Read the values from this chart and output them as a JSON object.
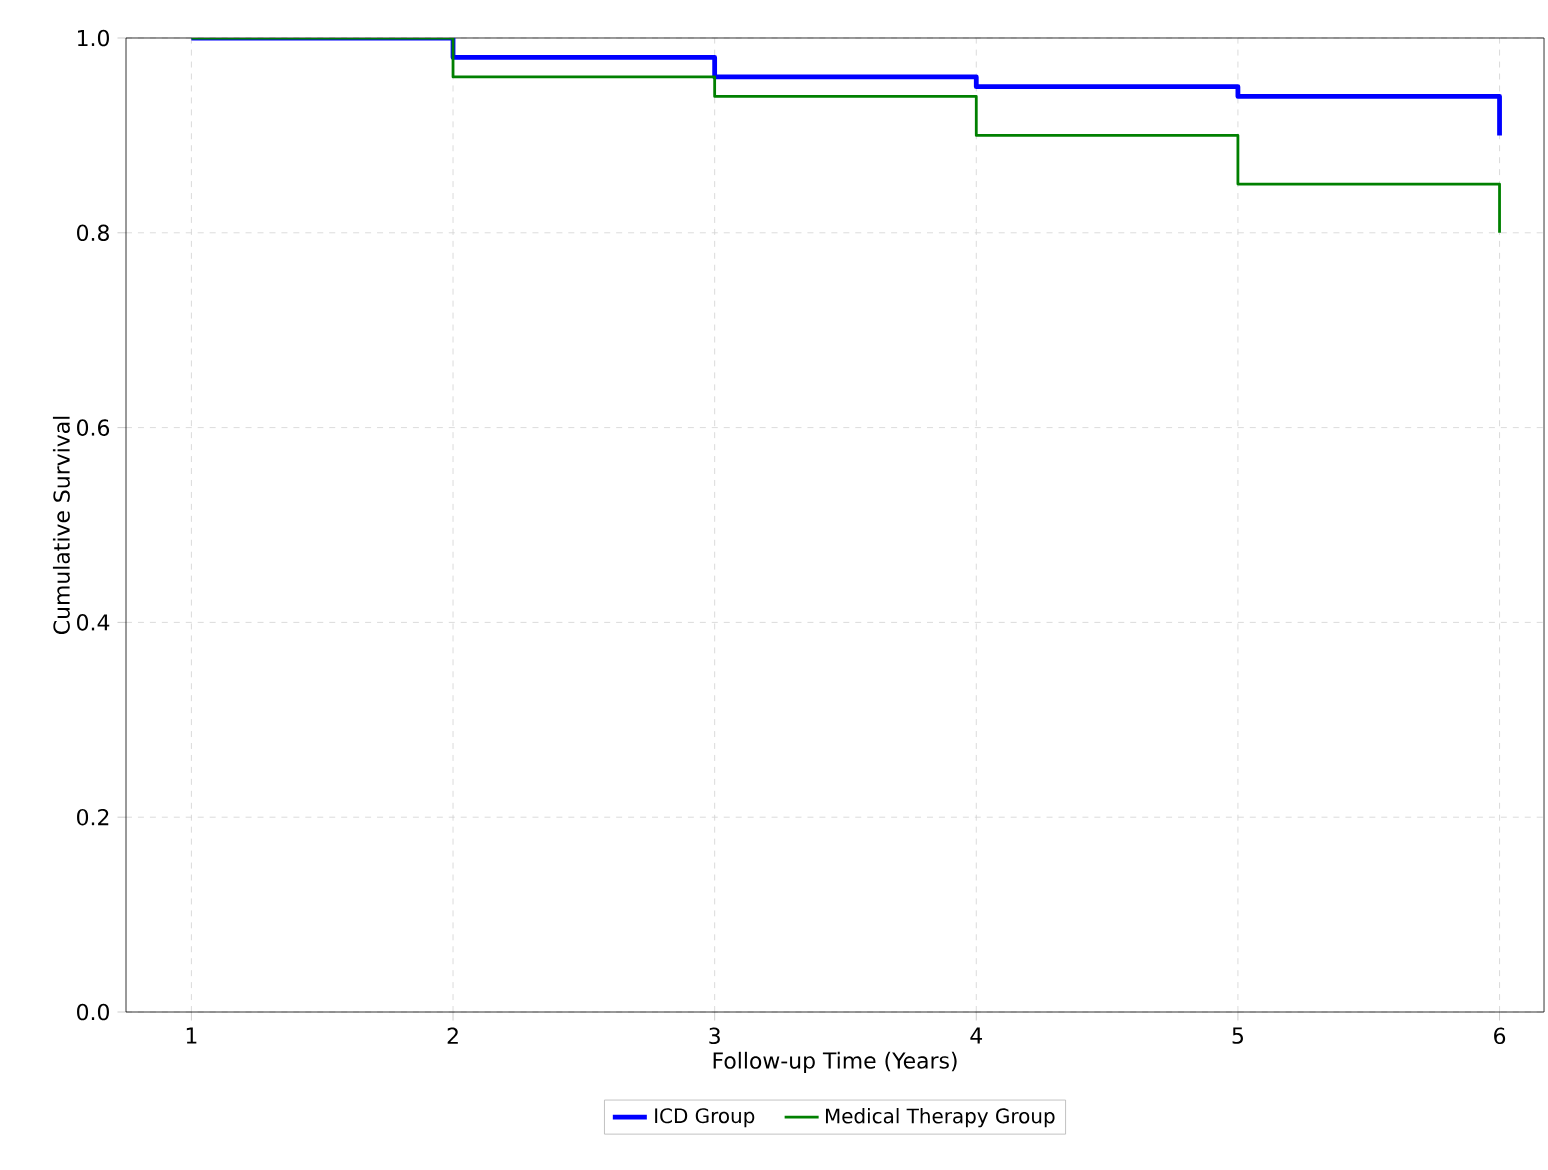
{
  "chart_data": {
    "type": "step",
    "xlabel": "Follow-up Time (Years)",
    "ylabel": "Cumulative Survival",
    "x": [
      1,
      2,
      3,
      4,
      5,
      6
    ],
    "series": [
      {
        "name": "ICD Group",
        "color": "#0000ff",
        "values": [
          1.0,
          0.98,
          0.96,
          0.95,
          0.94,
          0.9
        ]
      },
      {
        "name": "Medical Therapy Group",
        "color": "#008000",
        "values": [
          1.0,
          0.96,
          0.94,
          0.9,
          0.85,
          0.8
        ]
      }
    ],
    "xlim": [
      0.75,
      6.17
    ],
    "ylim": [
      0,
      1.0
    ],
    "xticks": [
      1,
      2,
      3,
      4,
      5,
      6
    ],
    "yticks": [
      {
        "value": 0,
        "label": "0.0"
      },
      0.2,
      0.4,
      0.6,
      0.8,
      {
        "value": 1.0,
        "label": "1.0"
      }
    ],
    "grid": true,
    "legend": "bottom"
  }
}
